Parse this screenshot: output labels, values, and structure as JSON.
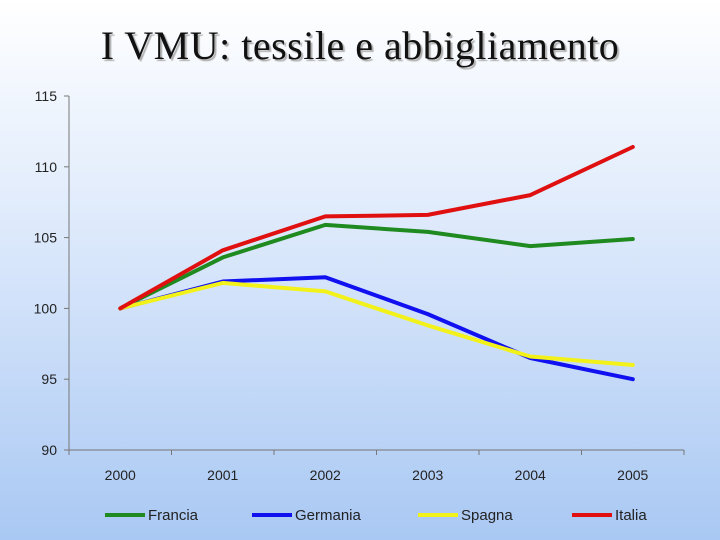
{
  "slide": {
    "title": "I VMU:  tessile e abbigliamento"
  },
  "chart_data": {
    "type": "line",
    "title": "",
    "xlabel": "",
    "ylabel": "",
    "categories": [
      "2000",
      "2001",
      "2002",
      "2003",
      "2004",
      "2005"
    ],
    "ylim": [
      90,
      115
    ],
    "yticks": [
      90,
      95,
      100,
      105,
      110,
      115
    ],
    "grid": false,
    "legend": "bottom",
    "series": [
      {
        "name": "Francia",
        "color": "#1f8a1f",
        "values": [
          100,
          103.6,
          105.9,
          105.4,
          104.4,
          104.9
        ]
      },
      {
        "name": "Germania",
        "color": "#1010f0",
        "values": [
          100,
          101.9,
          102.2,
          99.6,
          96.5,
          95.0
        ]
      },
      {
        "name": "Spagna",
        "color": "#f2f21a",
        "values": [
          100,
          101.8,
          101.2,
          98.8,
          96.6,
          96.0
        ]
      },
      {
        "name": "Italia",
        "color": "#e01010",
        "values": [
          100,
          104.1,
          106.5,
          106.6,
          108.0,
          111.4
        ]
      }
    ]
  }
}
